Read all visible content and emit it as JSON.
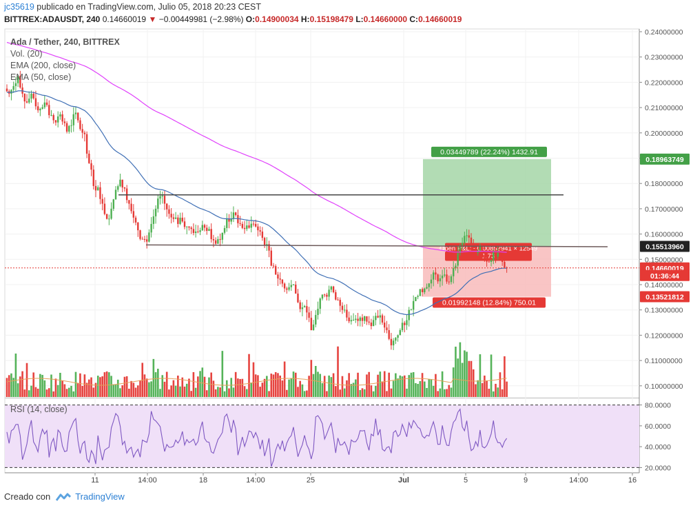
{
  "header": {
    "user": "jc35619",
    "published_text": "publicado en TradingView.com, Julio 05, 2018 20:23 CEST",
    "symbol": "BITTREX:ADAUSDT, 240",
    "last": "0.14660019",
    "change": "−0.00449981 (−2.98%)",
    "o_label": "O:",
    "o_value": "0.14900034",
    "h_label": "H:",
    "h_value": "0.15198479",
    "l_label": "L:",
    "l_value": "0.14660000",
    "c_label": "C:",
    "c_value": "0.14660019"
  },
  "legend": {
    "title": "Ada / Tether, 240, BITTREX",
    "vol": "Vol. (20)",
    "ema200": "EMA (200, close)",
    "ema50": "EMA (50, close)"
  },
  "rsi_legend": "RSI (14, close)",
  "footer": {
    "created_with": "Creado con",
    "brand": "TradingView"
  },
  "colors": {
    "up": "#4caf50",
    "down": "#e53935",
    "ema200": "#e040fb",
    "ema50": "#3f6fb5",
    "rsi": "#7e57c2",
    "rsi_band": "#f0e0f8",
    "profit": "#a5d6a7",
    "loss": "#f8bbbb",
    "price_line": "#e53935",
    "label_green": "#43a047",
    "label_red": "#e53935"
  },
  "chart_data": {
    "type": "candlestick",
    "symbol": "ADAUSDT",
    "timeframe": "240",
    "y_range": [
      0.095,
      0.2425
    ],
    "y_ticks": [
      "0.24000000",
      "0.23000000",
      "0.22000000",
      "0.21000000",
      "0.20000000",
      "0.19000000",
      "0.18000000",
      "0.17000000",
      "0.16000000",
      "0.15000000",
      "0.14000000",
      "0.13000000",
      "0.12000000",
      "0.11000000",
      "0.10000000"
    ],
    "x_ticks": [
      "11",
      "14:00",
      "18",
      "14:00",
      "25",
      "Jul",
      "5",
      "9",
      "14:00",
      "16"
    ],
    "price_labels": [
      {
        "text": "0.18963749",
        "value": 0.18963749,
        "style": "green"
      },
      {
        "text": "0.15513960",
        "value": 0.1551396,
        "style": "dark"
      },
      {
        "text": "0.14660019",
        "value": 0.14660019,
        "style": "red"
      },
      {
        "text": "01:36:44",
        "value": 0.1436,
        "style": "red"
      },
      {
        "text": "0.13521812",
        "value": 0.13521812,
        "style": "red"
      }
    ],
    "position_tool": {
      "entry": 0.1551396,
      "target": 0.18963749,
      "stop": 0.13521812,
      "profit_label": "0.03449789 (22.24%) 1432.91",
      "loss_label": "0.01992148 (12.84%) 750.01",
      "entry_label": "Open P&L: −0.00853941 × 12549",
      "ratio_label": "1.73"
    },
    "trendlines": [
      {
        "from_x": 0.1755,
        "to_x": 0.1755,
        "value": 0.1755
      },
      {
        "value_start": 0.1555,
        "value_end": 0.155
      }
    ],
    "close_points": [
      0.2155,
      0.2185,
      0.2225,
      0.2155,
      0.212,
      0.2155,
      0.2105,
      0.2095,
      0.212,
      0.207,
      0.205,
      0.2065,
      0.2045,
      0.2005,
      0.203,
      0.208,
      0.2015,
      0.1995,
      0.188,
      0.179,
      0.1785,
      0.172,
      0.166,
      0.17,
      0.1775,
      0.1815,
      0.178,
      0.172,
      0.1665,
      0.1615,
      0.158,
      0.157,
      0.164,
      0.17,
      0.175,
      0.172,
      0.168,
      0.166,
      0.164,
      0.165,
      0.163,
      0.162,
      0.161,
      0.1615,
      0.1625,
      0.162,
      0.1575,
      0.158,
      0.1605,
      0.166,
      0.166,
      0.1675,
      0.164,
      0.162,
      0.1625,
      0.164,
      0.1615,
      0.1585,
      0.156,
      0.1475,
      0.144,
      0.142,
      0.1385,
      0.139,
      0.14,
      0.133,
      0.131,
      0.129,
      0.122,
      0.128,
      0.1345,
      0.136,
      0.138,
      0.137,
      0.134,
      0.13,
      0.127,
      0.126,
      0.1265,
      0.127,
      0.1275,
      0.125,
      0.126,
      0.127,
      0.125,
      0.122,
      0.116,
      0.119,
      0.122,
      0.124,
      0.13,
      0.1335,
      0.1355,
      0.137,
      0.139,
      0.142,
      0.144,
      0.1425,
      0.144,
      0.141,
      0.1465,
      0.1525,
      0.1565,
      0.1595,
      0.155,
      0.1525,
      0.1555,
      0.1505,
      0.149,
      0.153,
      0.1525,
      0.149,
      0.1466
    ],
    "rsi": {
      "range": [
        15,
        85
      ],
      "bands": [
        20,
        80
      ],
      "ticks": [
        "80.0000",
        "60.0000",
        "40.0000",
        "20.0000"
      ],
      "last": 48
    }
  }
}
